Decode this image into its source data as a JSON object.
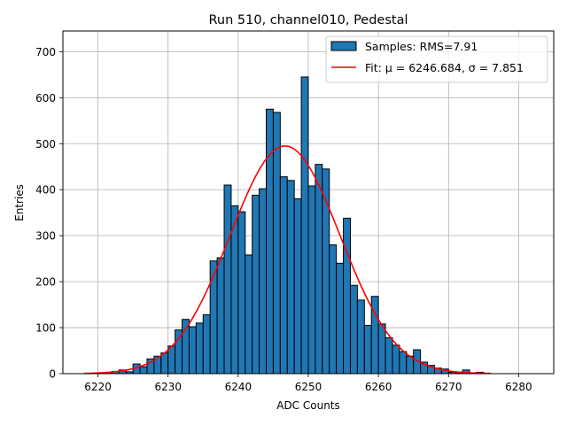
{
  "chart_data": {
    "type": "bar",
    "title": "Run 510, channel010, Pedestal",
    "xlabel": "ADC Counts",
    "ylabel": "Entries",
    "xlim": [
      6215,
      6285
    ],
    "ylim": [
      0,
      745
    ],
    "grid": true,
    "legend_position": "top-right",
    "x_ticks": [
      6220,
      6230,
      6240,
      6250,
      6260,
      6270,
      6280
    ],
    "y_ticks": [
      0,
      100,
      200,
      300,
      400,
      500,
      600,
      700
    ],
    "bin_width": 1,
    "bin_starts": [
      6218,
      6219,
      6220,
      6221,
      6222,
      6223,
      6224,
      6225,
      6226,
      6227,
      6228,
      6229,
      6230,
      6231,
      6232,
      6233,
      6234,
      6235,
      6236,
      6237,
      6238,
      6239,
      6240,
      6241,
      6242,
      6243,
      6244,
      6245,
      6246,
      6247,
      6248,
      6249,
      6250,
      6251,
      6252,
      6253,
      6254,
      6255,
      6256,
      6257,
      6258,
      6259,
      6260,
      6261,
      6262,
      6263,
      6264,
      6265,
      6266,
      6267,
      6268,
      6269,
      6270,
      6271,
      6272,
      6273,
      6274,
      6275
    ],
    "counts": [
      0,
      0,
      1,
      3,
      5,
      8,
      4,
      21,
      15,
      32,
      38,
      45,
      60,
      95,
      118,
      102,
      110,
      128,
      245,
      252,
      410,
      365,
      352,
      258,
      388,
      402,
      575,
      568,
      428,
      420,
      380,
      645,
      408,
      455,
      445,
      280,
      240,
      338,
      192,
      160,
      105,
      168,
      108,
      78,
      62,
      48,
      38,
      52,
      25,
      18,
      12,
      10,
      3,
      2,
      8,
      2,
      3,
      1
    ],
    "bar_color": "#1f77b4",
    "series": [
      {
        "name": "Samples: RMS=7.91",
        "kind": "histogram",
        "color": "#1f77b4"
      },
      {
        "name": "Fit: μ = 6246.684, σ = 7.851",
        "kind": "gaussian_fit",
        "color": "#ff0000",
        "mu": 6246.684,
        "sigma": 7.851,
        "amplitude": 495,
        "x_range": [
          6218,
          6276
        ]
      }
    ]
  }
}
